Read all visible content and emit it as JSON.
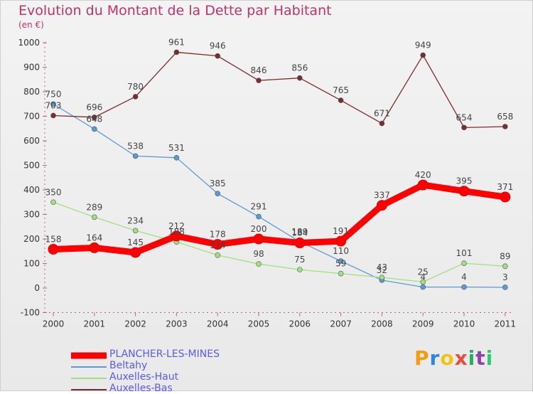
{
  "title": "Evolution du Montant de la Dette par Habitant",
  "unit_label": "(en €)",
  "logo": {
    "text": "Proxiti",
    "letters": [
      "P",
      "r",
      "o",
      "x",
      "i",
      "t",
      "i"
    ],
    "colors": [
      "#f39c12",
      "#2e86de",
      "#f1c40f",
      "#e74c3c",
      "#27ae60",
      "#8e44ad",
      "#2ecc71"
    ]
  },
  "chart_data": {
    "type": "line",
    "x": [
      "2000",
      "2001",
      "2002",
      "2003",
      "2004",
      "2005",
      "2006",
      "2007",
      "2008",
      "2009",
      "2010",
      "2011"
    ],
    "y_ticks": [
      "1000",
      "900",
      "800",
      "700",
      "600",
      "500",
      "400",
      "300",
      "200",
      "100",
      "0",
      "-100"
    ],
    "ylim": [
      -100,
      1000
    ],
    "grid": false,
    "legend_position": "bottom-left",
    "series": [
      {
        "name": "PLANCHER-LES-MINES",
        "color": "#ff0000",
        "values": [
          158,
          164,
          145,
          212,
          178,
          200,
          184,
          191,
          337,
          420,
          395,
          371
        ],
        "labels": [
          "158",
          "164",
          "145",
          "212",
          "178",
          "200",
          "184",
          "191",
          "337",
          "420",
          "395",
          "371"
        ],
        "thick": true
      },
      {
        "name": "Beltahy",
        "color": "#5b9bd5",
        "values": [
          750,
          648,
          538,
          531,
          385,
          291,
          189,
          110,
          32,
          4,
          4,
          3
        ],
        "labels": [
          "750",
          "648",
          "538",
          "531",
          "385",
          "291",
          "189",
          "110",
          "32",
          "4",
          "4",
          "3"
        ],
        "thick": false
      },
      {
        "name": "Auxelles-Haut",
        "color": "#a0e080",
        "values": [
          350,
          289,
          234,
          188,
          134,
          98,
          75,
          59,
          43,
          25,
          101,
          89
        ],
        "labels": [
          "350",
          "289",
          "234",
          "188",
          "134",
          "98",
          "75",
          "59",
          "43",
          "25",
          "101",
          "89"
        ],
        "thick": false
      },
      {
        "name": "Auxelles-Bas",
        "color": "#7b2c2c",
        "values": [
          703,
          696,
          780,
          961,
          946,
          846,
          856,
          765,
          671,
          949,
          654,
          658
        ],
        "labels": [
          "703",
          "696",
          "780",
          "961",
          "946",
          "846",
          "856",
          "765",
          "671",
          "949",
          "654",
          "658"
        ],
        "thick": false
      }
    ]
  }
}
